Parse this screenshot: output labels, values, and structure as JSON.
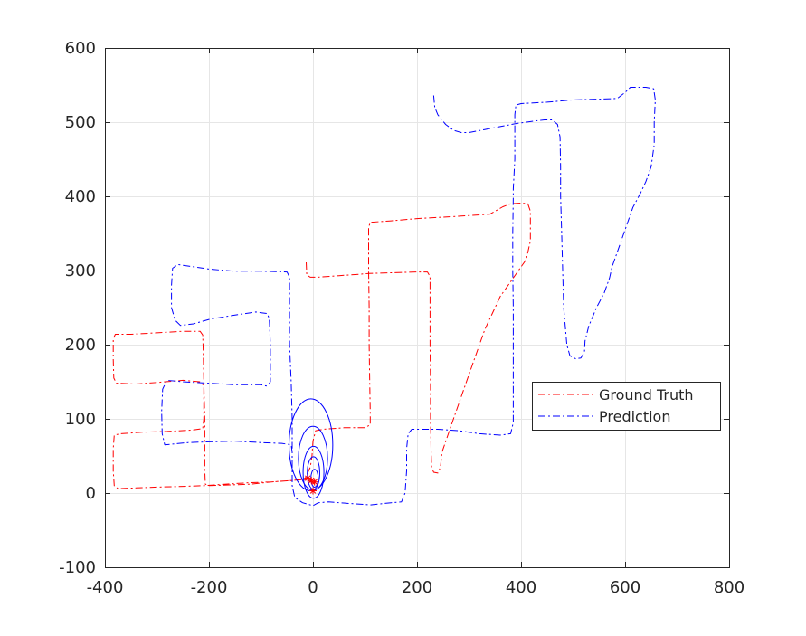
{
  "chart_data": {
    "type": "line",
    "xlim": [
      -400,
      800
    ],
    "ylim": [
      -100,
      600
    ],
    "xticks": [
      -400,
      -200,
      0,
      200,
      400,
      600,
      800
    ],
    "yticks": [
      -100,
      0,
      100,
      200,
      300,
      400,
      500,
      600
    ],
    "grid": true,
    "legend_position": "center-right",
    "series": [
      {
        "name": "Ground Truth",
        "color": "#ff0000",
        "linestyle": "dashdot",
        "points": [
          [
            -13,
            311
          ],
          [
            -12,
            294
          ],
          [
            -5,
            291
          ],
          [
            10,
            291
          ],
          [
            50,
            293
          ],
          [
            90,
            295
          ],
          [
            107,
            296
          ],
          [
            150,
            297
          ],
          [
            200,
            298
          ],
          [
            220,
            298
          ],
          [
            225,
            292
          ],
          [
            225,
            250
          ],
          [
            225,
            200
          ],
          [
            226,
            150
          ],
          [
            226,
            100
          ],
          [
            227,
            60
          ],
          [
            228,
            35
          ],
          [
            232,
            28
          ],
          [
            240,
            27
          ],
          [
            245,
            35
          ],
          [
            248,
            55
          ],
          [
            270,
            100
          ],
          [
            300,
            160
          ],
          [
            330,
            220
          ],
          [
            360,
            265
          ],
          [
            385,
            290
          ],
          [
            410,
            315
          ],
          [
            418,
            340
          ],
          [
            418,
            380
          ],
          [
            413,
            390
          ],
          [
            400,
            391
          ],
          [
            380,
            390
          ],
          [
            365,
            386
          ],
          [
            350,
            380
          ],
          [
            340,
            376
          ],
          [
            300,
            374
          ],
          [
            250,
            372
          ],
          [
            200,
            370
          ],
          [
            150,
            367
          ],
          [
            110,
            365
          ],
          [
            107,
            358
          ],
          [
            107,
            300
          ],
          [
            108,
            250
          ],
          [
            108,
            200
          ],
          [
            109,
            150
          ],
          [
            110,
            110
          ],
          [
            110,
            92
          ],
          [
            100,
            88
          ],
          [
            60,
            88
          ],
          [
            20,
            86
          ],
          [
            5,
            84
          ],
          [
            0,
            70
          ],
          [
            -2,
            50
          ],
          [
            -5,
            35
          ],
          [
            -15,
            20
          ],
          [
            -40,
            17
          ],
          [
            -80,
            15
          ],
          [
            -120,
            12
          ],
          [
            -160,
            11
          ],
          [
            -200,
            10
          ],
          [
            -207,
            12
          ],
          [
            -208,
            30
          ],
          [
            -208,
            60
          ],
          [
            -208,
            100
          ],
          [
            -210,
            150
          ],
          [
            -211,
            190
          ],
          [
            -212,
            213
          ],
          [
            -217,
            218
          ],
          [
            -250,
            218
          ],
          [
            -300,
            216
          ],
          [
            -350,
            214
          ],
          [
            -380,
            214
          ],
          [
            -384,
            208
          ],
          [
            -384,
            180
          ],
          [
            -383,
            155
          ],
          [
            -378,
            148
          ],
          [
            -340,
            147
          ],
          [
            -300,
            149
          ],
          [
            -250,
            152
          ],
          [
            -218,
            150
          ],
          [
            -210,
            145
          ],
          [
            -210,
            100
          ],
          [
            -212,
            87
          ],
          [
            -230,
            85
          ],
          [
            -280,
            83
          ],
          [
            -330,
            82
          ],
          [
            -370,
            80
          ],
          [
            -382,
            78
          ],
          [
            -384,
            60
          ],
          [
            -384,
            30
          ],
          [
            -382,
            10
          ],
          [
            -375,
            6
          ],
          [
            -340,
            7
          ],
          [
            -300,
            8
          ],
          [
            -250,
            9
          ],
          [
            -210,
            10
          ],
          [
            -170,
            12
          ],
          [
            -120,
            14
          ],
          [
            -80,
            15
          ],
          [
            -40,
            17
          ],
          [
            -20,
            18
          ],
          [
            -10,
            17
          ],
          [
            -5,
            15
          ],
          [
            0,
            14
          ],
          [
            3,
            12
          ]
        ]
      },
      {
        "name": "Prediction",
        "color": "#0000ff",
        "linestyle": "dashdot",
        "points": [
          [
            232,
            536
          ],
          [
            234,
            520
          ],
          [
            240,
            510
          ],
          [
            255,
            497
          ],
          [
            270,
            489
          ],
          [
            285,
            486
          ],
          [
            300,
            486
          ],
          [
            330,
            490
          ],
          [
            360,
            494
          ],
          [
            390,
            498
          ],
          [
            420,
            501
          ],
          [
            445,
            503
          ],
          [
            460,
            503
          ],
          [
            470,
            497
          ],
          [
            475,
            480
          ],
          [
            476,
            440
          ],
          [
            476,
            400
          ],
          [
            478,
            350
          ],
          [
            480,
            300
          ],
          [
            482,
            250
          ],
          [
            488,
            200
          ],
          [
            494,
            185
          ],
          [
            505,
            181
          ],
          [
            515,
            182
          ],
          [
            522,
            190
          ],
          [
            523,
            205
          ],
          [
            530,
            225
          ],
          [
            545,
            250
          ],
          [
            560,
            270
          ],
          [
            570,
            290
          ],
          [
            575,
            305
          ],
          [
            585,
            325
          ],
          [
            600,
            355
          ],
          [
            615,
            385
          ],
          [
            630,
            405
          ],
          [
            640,
            420
          ],
          [
            650,
            440
          ],
          [
            656,
            470
          ],
          [
            656,
            500
          ],
          [
            658,
            530
          ],
          [
            655,
            545
          ],
          [
            640,
            547
          ],
          [
            610,
            547
          ],
          [
            600,
            540
          ],
          [
            585,
            532
          ],
          [
            550,
            531
          ],
          [
            500,
            530
          ],
          [
            450,
            527
          ],
          [
            400,
            525
          ],
          [
            390,
            523
          ],
          [
            388,
            510
          ],
          [
            388,
            450
          ],
          [
            385,
            410
          ],
          [
            385,
            400
          ],
          [
            384,
            350
          ],
          [
            384,
            300
          ],
          [
            385,
            250
          ],
          [
            385,
            200
          ],
          [
            385,
            150
          ],
          [
            385,
            95
          ],
          [
            380,
            80
          ],
          [
            360,
            78
          ],
          [
            320,
            80
          ],
          [
            280,
            84
          ],
          [
            240,
            86
          ],
          [
            190,
            86
          ],
          [
            183,
            80
          ],
          [
            180,
            60
          ],
          [
            180,
            30
          ],
          [
            177,
            0
          ],
          [
            170,
            -12
          ],
          [
            150,
            -13
          ],
          [
            110,
            -16
          ],
          [
            70,
            -14
          ],
          [
            30,
            -12
          ],
          [
            10,
            -13
          ],
          [
            0,
            -17
          ],
          [
            -20,
            -13
          ],
          [
            -35,
            -6
          ],
          [
            -40,
            10
          ],
          [
            -40,
            30
          ],
          [
            -40,
            55
          ],
          [
            -42,
            65
          ],
          [
            -60,
            67
          ],
          [
            -100,
            68
          ],
          [
            -150,
            70
          ],
          [
            -200,
            69
          ],
          [
            -240,
            68
          ],
          [
            -270,
            66
          ],
          [
            -285,
            65
          ],
          [
            -290,
            80
          ],
          [
            -291,
            110
          ],
          [
            -289,
            140
          ],
          [
            -281,
            152
          ],
          [
            -250,
            150
          ],
          [
            -200,
            148
          ],
          [
            -150,
            146
          ],
          [
            -100,
            146
          ],
          [
            -88,
            144
          ],
          [
            -82,
            150
          ],
          [
            -82,
            200
          ],
          [
            -84,
            235
          ],
          [
            -88,
            242
          ],
          [
            -110,
            244
          ],
          [
            -150,
            240
          ],
          [
            -200,
            234
          ],
          [
            -230,
            228
          ],
          [
            -255,
            226
          ],
          [
            -265,
            233
          ],
          [
            -272,
            250
          ],
          [
            -272,
            280
          ],
          [
            -270,
            303
          ],
          [
            -260,
            308
          ],
          [
            -230,
            305
          ],
          [
            -200,
            302
          ],
          [
            -150,
            299
          ],
          [
            -100,
            299
          ],
          [
            -50,
            298
          ],
          [
            -45,
            291
          ],
          [
            -45,
            250
          ],
          [
            -45,
            200
          ],
          [
            -42,
            150
          ],
          [
            -40,
            100
          ],
          [
            -40,
            60
          ]
        ]
      }
    ],
    "ellipses": [
      {
        "cx": -4,
        "cy": 65,
        "rx": 42,
        "ry": 62
      },
      {
        "cx": 0,
        "cy": 47,
        "rx": 28,
        "ry": 43
      },
      {
        "cx": 1,
        "cy": 28,
        "rx": 20,
        "ry": 35
      },
      {
        "cx": 1,
        "cy": 27,
        "rx": 12,
        "ry": 22
      },
      {
        "cx": 3,
        "cy": 20,
        "rx": 7,
        "ry": 12
      }
    ],
    "markers": [
      {
        "x": -10,
        "y": 20
      },
      {
        "x": -3,
        "y": 17
      },
      {
        "x": 3,
        "y": 15
      },
      {
        "x": 0,
        "y": 3
      }
    ],
    "marker_color": "#ff0000",
    "marker_symbol": "*"
  }
}
